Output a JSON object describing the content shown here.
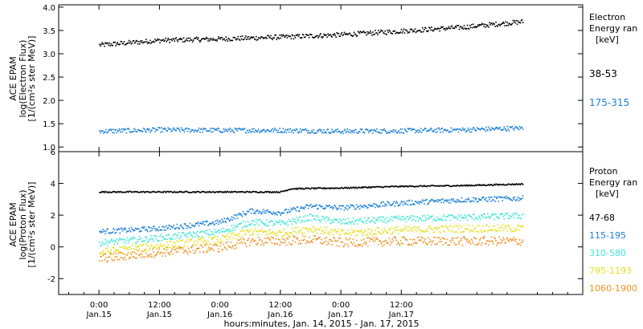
{
  "chart_data": [
    {
      "type": "scatter",
      "panel": "electron",
      "ylabel_lines": [
        "ACE EPAM",
        "log(Electron Flux)",
        "[1/(cm²s ster MeV)]"
      ],
      "ylim": [
        0.9,
        4.05
      ],
      "yticks": [
        1.0,
        1.5,
        2.0,
        2.5,
        3.0,
        3.5,
        4.0
      ],
      "ytick_labels": [
        "1.0",
        "1.5",
        "2.0",
        "2.5",
        "3.0",
        "3.5",
        "4.0"
      ],
      "legend_title_lines": [
        "Electron",
        "Energy ran",
        "[keV]"
      ],
      "series": [
        {
          "name": "38-53",
          "color": "#000000",
          "x": [
            0,
            12,
            24,
            36,
            48,
            60,
            72,
            84
          ],
          "y": [
            3.2,
            3.3,
            3.33,
            3.37,
            3.42,
            3.5,
            3.58,
            3.7
          ]
        },
        {
          "name": "175-315",
          "color": "#1a7fd6",
          "x": [
            0,
            12,
            24,
            36,
            48,
            60,
            72,
            84
          ],
          "y": [
            1.35,
            1.38,
            1.37,
            1.37,
            1.35,
            1.36,
            1.38,
            1.42
          ]
        }
      ]
    },
    {
      "type": "scatter",
      "panel": "proton",
      "ylabel_lines": [
        "ACE EPAM",
        "log(Proton Flux)",
        "[1/(cm²s ster MeV)]"
      ],
      "ylim": [
        -3,
        6
      ],
      "yticks": [
        -2,
        0,
        2,
        4,
        6
      ],
      "ytick_labels": [
        "-2",
        "0",
        "2",
        "4",
        "6"
      ],
      "legend_title_lines": [
        "Proton",
        "Energy ran",
        "[keV]"
      ],
      "series": [
        {
          "name": "47-68",
          "color": "#000000",
          "x": [
            0,
            12,
            24,
            36,
            38,
            48,
            60,
            72,
            84
          ],
          "y": [
            3.5,
            3.5,
            3.5,
            3.5,
            3.7,
            3.75,
            3.85,
            3.9,
            4.0
          ]
        },
        {
          "name": "115-195",
          "color": "#1a7fd6",
          "x": [
            0,
            12,
            24,
            30,
            36,
            42,
            48,
            60,
            72,
            84
          ],
          "y": [
            1.0,
            1.2,
            1.6,
            2.3,
            2.2,
            2.6,
            2.5,
            2.8,
            3.0,
            3.1
          ]
        },
        {
          "name": "310-580",
          "color": "#3ee6d8",
          "x": [
            0,
            12,
            24,
            30,
            36,
            42,
            48,
            60,
            72,
            84
          ],
          "y": [
            0.3,
            0.6,
            1.0,
            1.6,
            1.5,
            1.9,
            1.6,
            1.8,
            1.9,
            2.0
          ]
        },
        {
          "name": "795-1193",
          "color": "#e3e020",
          "x": [
            0,
            12,
            24,
            30,
            36,
            42,
            48,
            60,
            72,
            84
          ],
          "y": [
            -0.3,
            0.1,
            0.5,
            1.0,
            0.9,
            1.2,
            0.9,
            1.1,
            1.2,
            1.2
          ]
        },
        {
          "name": "1060-1900",
          "color": "#f0901e",
          "x": [
            0,
            12,
            24,
            30,
            36,
            42,
            48,
            60,
            72,
            84
          ],
          "y": [
            -0.7,
            -0.3,
            0.0,
            0.4,
            0.4,
            0.5,
            0.3,
            0.4,
            0.4,
            0.4
          ]
        }
      ]
    }
  ],
  "x_axis": {
    "xlim": [
      -8,
      96
    ],
    "ticks": [
      {
        "x": 0,
        "time": "0:00",
        "date": "Jan.15"
      },
      {
        "x": 12,
        "time": "12:00",
        "date": "Jan.15"
      },
      {
        "x": 24,
        "time": "0:00",
        "date": "Jan.16"
      },
      {
        "x": 36,
        "time": "12:00",
        "date": "Jan.16"
      },
      {
        "x": 48,
        "time": "0:00",
        "date": "Jan.17"
      },
      {
        "x": 60,
        "time": "12:00",
        "date": "Jan.17"
      }
    ],
    "xlabel": "hours:minutes, Jan. 14, 2015 - Jan. 17, 2015"
  }
}
